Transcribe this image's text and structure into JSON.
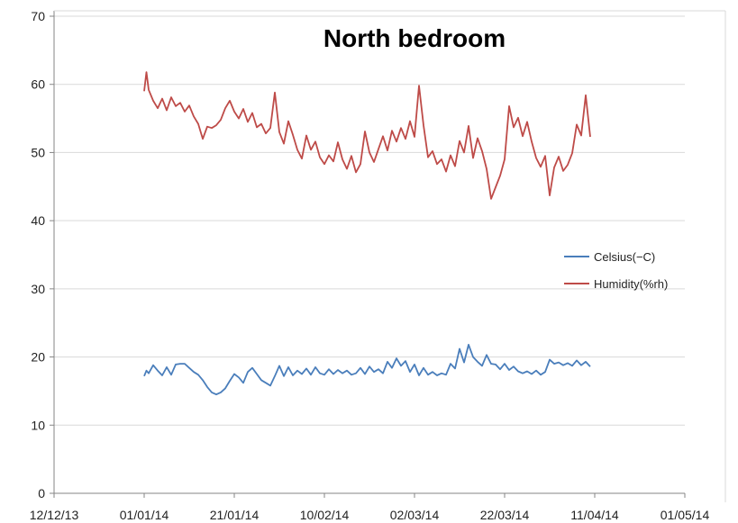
{
  "chart_data": {
    "type": "line",
    "title": "North bedroom",
    "xlabel": "",
    "ylabel": "",
    "x_axis_type": "date",
    "xlim": [
      "2013-12-12",
      "2014-05-01"
    ],
    "ylim": [
      0,
      70
    ],
    "y_ticks": [
      0,
      10,
      20,
      30,
      40,
      50,
      60,
      70
    ],
    "x_ticks": [
      {
        "date": "2013-12-12",
        "label": "12/12/13"
      },
      {
        "date": "2014-01-01",
        "label": "01/01/14"
      },
      {
        "date": "2014-01-21",
        "label": "21/01/14"
      },
      {
        "date": "2014-02-10",
        "label": "10/02/14"
      },
      {
        "date": "2014-03-02",
        "label": "02/03/14"
      },
      {
        "date": "2014-03-22",
        "label": "22/03/14"
      },
      {
        "date": "2014-04-11",
        "label": "11/04/14"
      },
      {
        "date": "2014-05-01",
        "label": "01/05/14"
      }
    ],
    "grid": "horizontal",
    "legend_position": "right",
    "series": [
      {
        "name": "Celsius(−C)",
        "color": "#4a7ebb",
        "points": [
          [
            "2014-01-01",
            17.2
          ],
          [
            "2014-01-01T12",
            18.0
          ],
          [
            "2014-01-02",
            17.6
          ],
          [
            "2014-01-03",
            18.8
          ],
          [
            "2014-01-04",
            18.0
          ],
          [
            "2014-01-05",
            17.3
          ],
          [
            "2014-01-06",
            18.5
          ],
          [
            "2014-01-07",
            17.4
          ],
          [
            "2014-01-08",
            18.9
          ],
          [
            "2014-01-09",
            19.0
          ],
          [
            "2014-01-10",
            19.0
          ],
          [
            "2014-01-11",
            18.4
          ],
          [
            "2014-01-12",
            17.8
          ],
          [
            "2014-01-13",
            17.4
          ],
          [
            "2014-01-14",
            16.6
          ],
          [
            "2014-01-15",
            15.6
          ],
          [
            "2014-01-16",
            14.8
          ],
          [
            "2014-01-17",
            14.5
          ],
          [
            "2014-01-18",
            14.8
          ],
          [
            "2014-01-19",
            15.4
          ],
          [
            "2014-01-20",
            16.5
          ],
          [
            "2014-01-21",
            17.5
          ],
          [
            "2014-01-22",
            17.0
          ],
          [
            "2014-01-23",
            16.2
          ],
          [
            "2014-01-24",
            17.8
          ],
          [
            "2014-01-25",
            18.4
          ],
          [
            "2014-01-26",
            17.5
          ],
          [
            "2014-01-27",
            16.6
          ],
          [
            "2014-01-28",
            16.2
          ],
          [
            "2014-01-29",
            15.8
          ],
          [
            "2014-01-30",
            17.2
          ],
          [
            "2014-01-31",
            18.7
          ],
          [
            "2014-02-01",
            17.2
          ],
          [
            "2014-02-02",
            18.5
          ],
          [
            "2014-02-03",
            17.3
          ],
          [
            "2014-02-04",
            18.0
          ],
          [
            "2014-02-05",
            17.5
          ],
          [
            "2014-02-06",
            18.3
          ],
          [
            "2014-02-07",
            17.4
          ],
          [
            "2014-02-08",
            18.5
          ],
          [
            "2014-02-09",
            17.6
          ],
          [
            "2014-02-10",
            17.4
          ],
          [
            "2014-02-11",
            18.2
          ],
          [
            "2014-02-12",
            17.5
          ],
          [
            "2014-02-13",
            18.1
          ],
          [
            "2014-02-14",
            17.6
          ],
          [
            "2014-02-15",
            18.0
          ],
          [
            "2014-02-16",
            17.4
          ],
          [
            "2014-02-17",
            17.6
          ],
          [
            "2014-02-18",
            18.4
          ],
          [
            "2014-02-19",
            17.5
          ],
          [
            "2014-02-20",
            18.6
          ],
          [
            "2014-02-21",
            17.8
          ],
          [
            "2014-02-22",
            18.2
          ],
          [
            "2014-02-23",
            17.6
          ],
          [
            "2014-02-24",
            19.3
          ],
          [
            "2014-02-25",
            18.4
          ],
          [
            "2014-02-26",
            19.8
          ],
          [
            "2014-02-27",
            18.7
          ],
          [
            "2014-02-28",
            19.4
          ],
          [
            "2014-03-01",
            17.8
          ],
          [
            "2014-03-02",
            18.9
          ],
          [
            "2014-03-03",
            17.3
          ],
          [
            "2014-03-04",
            18.4
          ],
          [
            "2014-03-05",
            17.4
          ],
          [
            "2014-03-06",
            17.8
          ],
          [
            "2014-03-07",
            17.3
          ],
          [
            "2014-03-08",
            17.6
          ],
          [
            "2014-03-09",
            17.4
          ],
          [
            "2014-03-10",
            19.0
          ],
          [
            "2014-03-11",
            18.3
          ],
          [
            "2014-03-12",
            21.2
          ],
          [
            "2014-03-13",
            19.2
          ],
          [
            "2014-03-14",
            21.8
          ],
          [
            "2014-03-15",
            20.0
          ],
          [
            "2014-03-16",
            19.3
          ],
          [
            "2014-03-17",
            18.7
          ],
          [
            "2014-03-18",
            20.3
          ],
          [
            "2014-03-19",
            19.0
          ],
          [
            "2014-03-20",
            18.9
          ],
          [
            "2014-03-21",
            18.2
          ],
          [
            "2014-03-22",
            19.0
          ],
          [
            "2014-03-23",
            18.1
          ],
          [
            "2014-03-24",
            18.6
          ],
          [
            "2014-03-25",
            17.9
          ],
          [
            "2014-03-26",
            17.6
          ],
          [
            "2014-03-27",
            17.9
          ],
          [
            "2014-03-28",
            17.5
          ],
          [
            "2014-03-29",
            18.0
          ],
          [
            "2014-03-30",
            17.4
          ],
          [
            "2014-03-31",
            17.8
          ],
          [
            "2014-04-01",
            19.6
          ],
          [
            "2014-04-02",
            19.0
          ],
          [
            "2014-04-03",
            19.2
          ],
          [
            "2014-04-04",
            18.8
          ],
          [
            "2014-04-05",
            19.1
          ],
          [
            "2014-04-06",
            18.7
          ],
          [
            "2014-04-07",
            19.5
          ],
          [
            "2014-04-08",
            18.8
          ],
          [
            "2014-04-09",
            19.3
          ],
          [
            "2014-04-10",
            18.6
          ]
        ]
      },
      {
        "name": "Humidity(%rh)",
        "color": "#be4b48",
        "points": [
          [
            "2014-01-01",
            59.0
          ],
          [
            "2014-01-01T12",
            61.8
          ],
          [
            "2014-01-02",
            59.2
          ],
          [
            "2014-01-03",
            57.6
          ],
          [
            "2014-01-04",
            56.5
          ],
          [
            "2014-01-05",
            57.9
          ],
          [
            "2014-01-06",
            56.2
          ],
          [
            "2014-01-07",
            58.1
          ],
          [
            "2014-01-08",
            56.8
          ],
          [
            "2014-01-09",
            57.3
          ],
          [
            "2014-01-10",
            56.0
          ],
          [
            "2014-01-11",
            56.9
          ],
          [
            "2014-01-12",
            55.3
          ],
          [
            "2014-01-13",
            54.2
          ],
          [
            "2014-01-14",
            52.0
          ],
          [
            "2014-01-15",
            53.8
          ],
          [
            "2014-01-16",
            53.6
          ],
          [
            "2014-01-17",
            54.0
          ],
          [
            "2014-01-18",
            54.8
          ],
          [
            "2014-01-19",
            56.5
          ],
          [
            "2014-01-20",
            57.6
          ],
          [
            "2014-01-21",
            56.0
          ],
          [
            "2014-01-22",
            55.0
          ],
          [
            "2014-01-23",
            56.4
          ],
          [
            "2014-01-24",
            54.5
          ],
          [
            "2014-01-25",
            55.8
          ],
          [
            "2014-01-26",
            53.7
          ],
          [
            "2014-01-27",
            54.2
          ],
          [
            "2014-01-28",
            52.8
          ],
          [
            "2014-01-29",
            53.6
          ],
          [
            "2014-01-30",
            58.8
          ],
          [
            "2014-01-31",
            53.0
          ],
          [
            "2014-02-01",
            51.3
          ],
          [
            "2014-02-02",
            54.6
          ],
          [
            "2014-02-03",
            52.6
          ],
          [
            "2014-02-04",
            50.4
          ],
          [
            "2014-02-05",
            49.1
          ],
          [
            "2014-02-06",
            52.5
          ],
          [
            "2014-02-07",
            50.4
          ],
          [
            "2014-02-08",
            51.6
          ],
          [
            "2014-02-09",
            49.3
          ],
          [
            "2014-02-10",
            48.3
          ],
          [
            "2014-02-11",
            49.6
          ],
          [
            "2014-02-12",
            48.7
          ],
          [
            "2014-02-13",
            51.5
          ],
          [
            "2014-02-14",
            49.0
          ],
          [
            "2014-02-15",
            47.6
          ],
          [
            "2014-02-16",
            49.5
          ],
          [
            "2014-02-17",
            47.1
          ],
          [
            "2014-02-18",
            48.3
          ],
          [
            "2014-02-19",
            53.1
          ],
          [
            "2014-02-20",
            50.0
          ],
          [
            "2014-02-21",
            48.6
          ],
          [
            "2014-02-22",
            50.5
          ],
          [
            "2014-02-23",
            52.4
          ],
          [
            "2014-02-24",
            50.3
          ],
          [
            "2014-02-25",
            53.2
          ],
          [
            "2014-02-26",
            51.6
          ],
          [
            "2014-02-27",
            53.6
          ],
          [
            "2014-02-28",
            52.0
          ],
          [
            "2014-03-01",
            54.6
          ],
          [
            "2014-03-02",
            52.3
          ],
          [
            "2014-03-03",
            59.8
          ],
          [
            "2014-03-04",
            54.0
          ],
          [
            "2014-03-05",
            49.3
          ],
          [
            "2014-03-06",
            50.2
          ],
          [
            "2014-03-07",
            48.3
          ],
          [
            "2014-03-08",
            49.0
          ],
          [
            "2014-03-09",
            47.2
          ],
          [
            "2014-03-10",
            49.6
          ],
          [
            "2014-03-11",
            48.0
          ],
          [
            "2014-03-12",
            51.7
          ],
          [
            "2014-03-13",
            50.0
          ],
          [
            "2014-03-14",
            53.9
          ],
          [
            "2014-03-15",
            49.2
          ],
          [
            "2014-03-16",
            52.1
          ],
          [
            "2014-03-17",
            50.2
          ],
          [
            "2014-03-18",
            47.6
          ],
          [
            "2014-03-19",
            43.2
          ],
          [
            "2014-03-20",
            44.9
          ],
          [
            "2014-03-21",
            46.6
          ],
          [
            "2014-03-22",
            49.0
          ],
          [
            "2014-03-23",
            56.8
          ],
          [
            "2014-03-24",
            53.7
          ],
          [
            "2014-03-25",
            55.1
          ],
          [
            "2014-03-26",
            52.4
          ],
          [
            "2014-03-27",
            54.5
          ],
          [
            "2014-03-28",
            51.6
          ],
          [
            "2014-03-29",
            49.2
          ],
          [
            "2014-03-30",
            47.9
          ],
          [
            "2014-03-31",
            49.5
          ],
          [
            "2014-04-01",
            43.7
          ],
          [
            "2014-04-02",
            47.8
          ],
          [
            "2014-04-03",
            49.4
          ],
          [
            "2014-04-04",
            47.3
          ],
          [
            "2014-04-05",
            48.2
          ],
          [
            "2014-04-06",
            49.9
          ],
          [
            "2014-04-07",
            54.1
          ],
          [
            "2014-04-08",
            52.5
          ],
          [
            "2014-04-09",
            58.4
          ],
          [
            "2014-04-10",
            52.3
          ]
        ]
      }
    ]
  }
}
